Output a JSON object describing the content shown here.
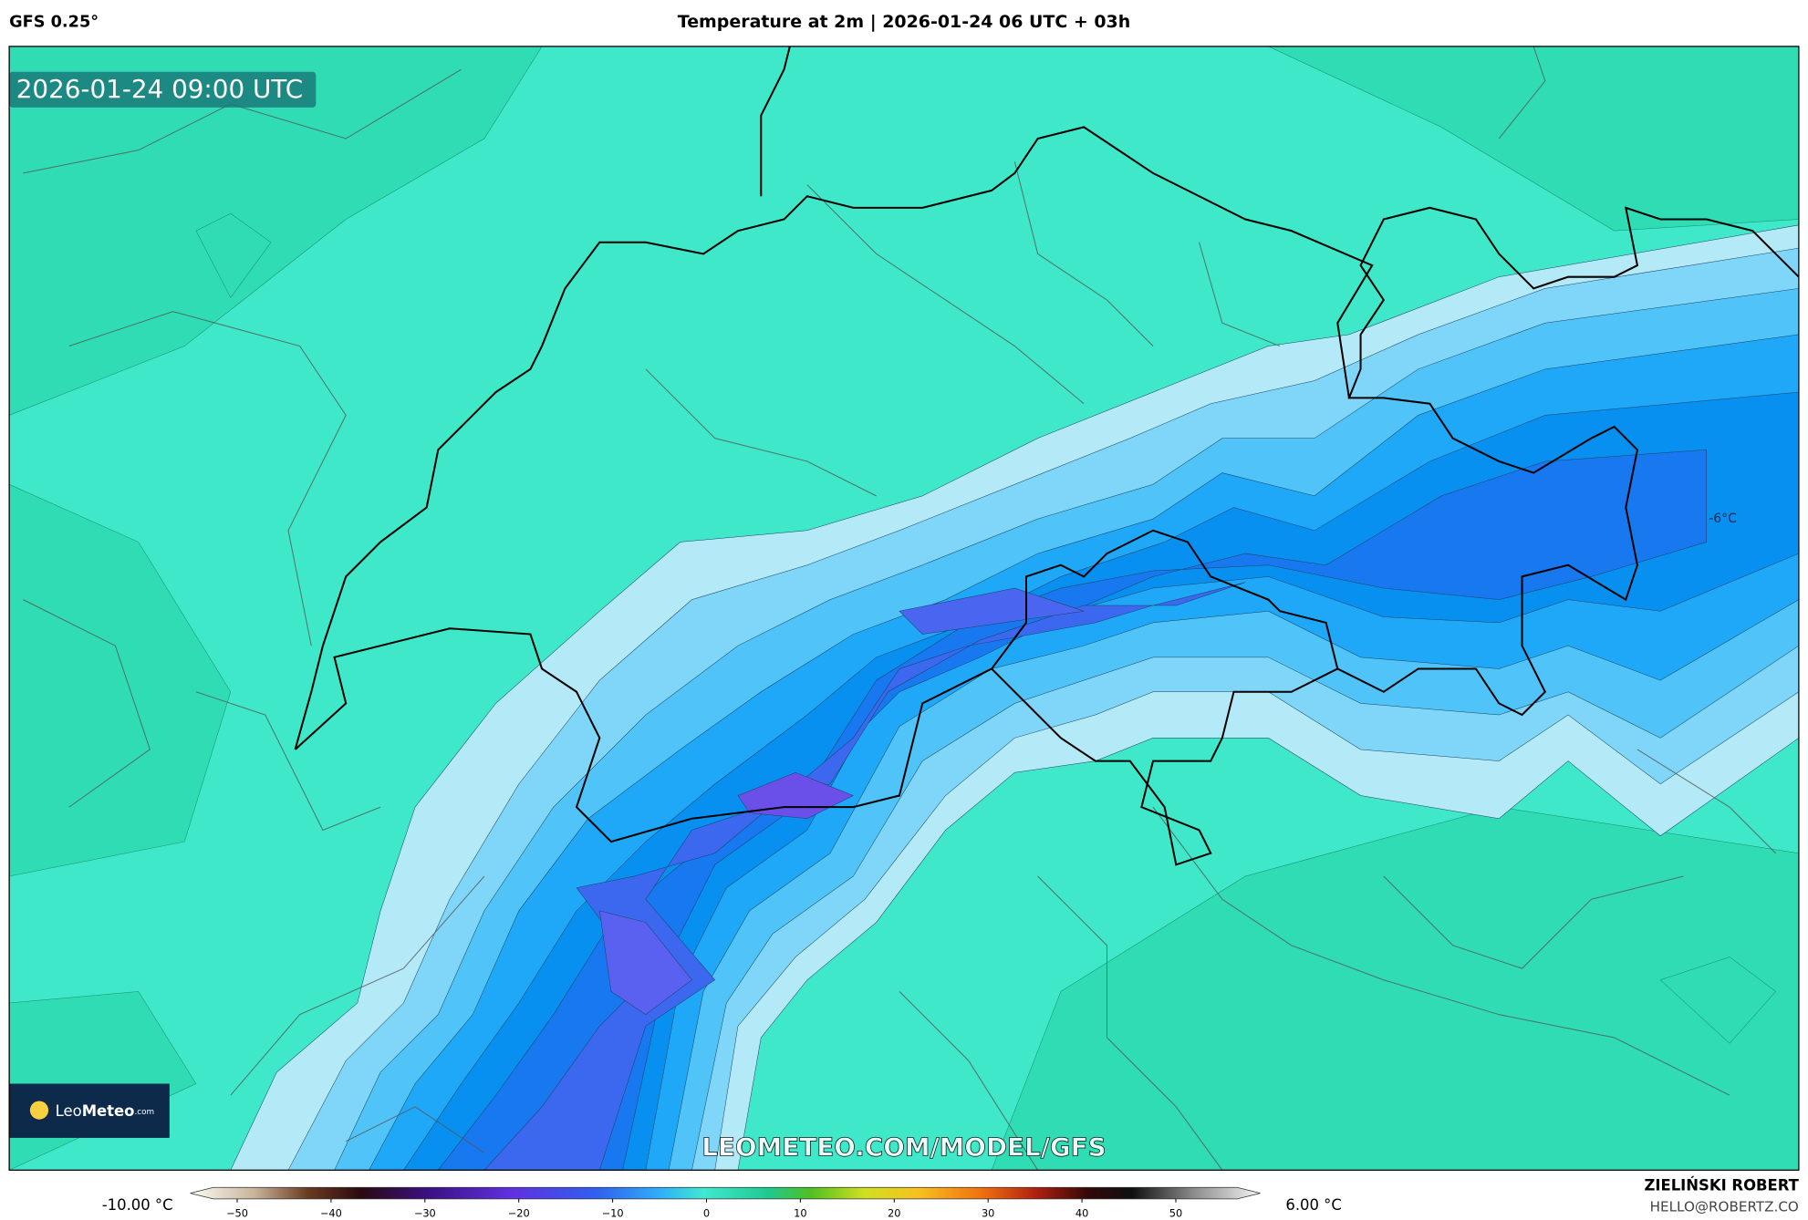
{
  "header": {
    "model": "GFS 0.25°",
    "title": "Temperature at 2m | 2026-01-24 06 UTC + 03h"
  },
  "map": {
    "valid_time": "2026-01-24 09:00 UTC",
    "watermark": "LEOMETEO.COM/MODEL/GFS",
    "contour_label": "-6°C",
    "logo": {
      "leo": "Leo",
      "meteo": "Meteo",
      "com": ".com"
    }
  },
  "colorbar": {
    "min_label": "-10.00 °C",
    "max_label": "6.00 °C",
    "lim": [
      -55,
      59
    ],
    "ticks": [
      {
        "value": -50,
        "label": "−50"
      },
      {
        "value": -40,
        "label": "−40"
      },
      {
        "value": -30,
        "label": "−30"
      },
      {
        "value": -20,
        "label": "−20"
      },
      {
        "value": -10,
        "label": "−10"
      },
      0,
      10,
      20,
      30,
      40,
      50
    ]
  },
  "credits": {
    "author": "ZIELIŃSKI ROBERT",
    "email": "HELLO@ROBERTZ.CO"
  }
}
